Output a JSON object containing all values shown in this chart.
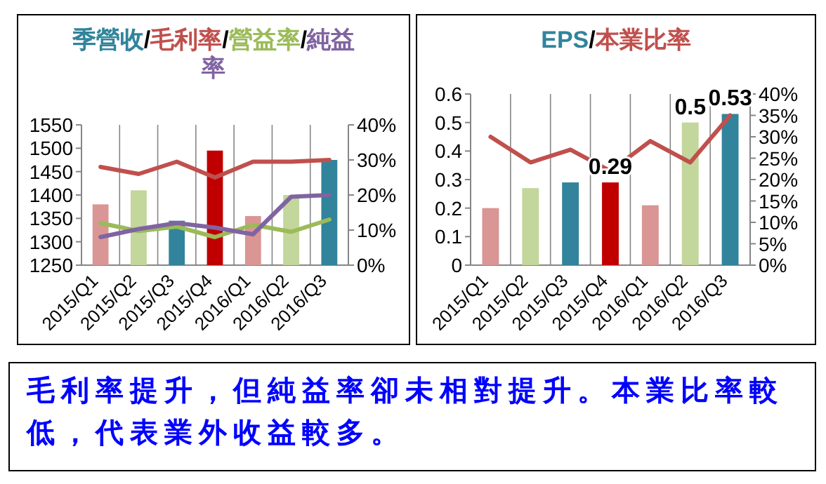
{
  "chart_data": [
    {
      "type": "bar",
      "title": "季營收/毛利率/營益率/純益率",
      "categories": [
        "2015/Q1",
        "2015/Q2",
        "2015/Q3",
        "2015/Q4",
        "2016/Q1",
        "2016/Q2",
        "2016/Q3"
      ],
      "series": [
        {
          "type": "bar",
          "color": "#31849b",
          "colors": [
            "#d99694",
            "#c3d69b",
            "#31849b",
            "#c00000",
            "#d99694",
            "#c3d69b",
            "#31849b"
          ],
          "values": [
            1380,
            1410,
            1345,
            1495,
            1355,
            1400,
            1475
          ]
        },
        {
          "type": "line",
          "axis": "y2",
          "color": "#c0504d",
          "values": [
            28,
            26,
            29.5,
            25,
            29.5,
            29.5,
            30
          ]
        },
        {
          "type": "line",
          "axis": "y2",
          "color": "#9bbb59",
          "values": [
            12,
            9.7,
            11,
            8,
            11.5,
            9.5,
            13
          ]
        },
        {
          "type": "line",
          "axis": "y2",
          "color": "#8064a2",
          "values": [
            8,
            10.3,
            12,
            10.7,
            8.8,
            19.5,
            20
          ]
        }
      ],
      "ylim": [
        1250,
        1550
      ],
      "yticks": [
        1250,
        1300,
        1350,
        1400,
        1450,
        1500,
        1550
      ],
      "y2lim": [
        0,
        40
      ],
      "y2ticks": [
        {
          "value": 0,
          "label": "0%"
        },
        {
          "value": 10,
          "label": "10%"
        },
        {
          "value": 20,
          "label": "20%"
        },
        {
          "value": 30,
          "label": "30%"
        },
        {
          "value": 40,
          "label": "40%"
        }
      ],
      "grid": "x"
    },
    {
      "type": "bar",
      "title": "EPS/本業比率",
      "categories": [
        "2015/Q1",
        "2015/Q2",
        "2015/Q3",
        "2015/Q4",
        "2016/Q1",
        "2016/Q2",
        "2016/Q3"
      ],
      "series": [
        {
          "type": "bar",
          "color": "#31849b",
          "colors": [
            "#d99694",
            "#c3d69b",
            "#31849b",
            "#c00000",
            "#d99694",
            "#c3d69b",
            "#31849b"
          ],
          "values": [
            0.2,
            0.27,
            0.29,
            0.29,
            0.21,
            0.5,
            0.53
          ],
          "value_labels": [
            null,
            null,
            null,
            "0.29",
            null,
            "0.5",
            "0.53"
          ]
        },
        {
          "type": "line",
          "axis": "y2",
          "color": "#c0504d",
          "values": [
            30,
            24,
            27,
            22,
            29,
            24,
            35
          ]
        }
      ],
      "ylim": [
        0,
        0.6
      ],
      "yticks": [
        0,
        0.1,
        0.2,
        0.3,
        0.4,
        0.5,
        0.6
      ],
      "y2lim": [
        0,
        40
      ],
      "y2ticks": [
        {
          "value": 0,
          "label": "0%"
        },
        {
          "value": 5,
          "label": "5%"
        },
        {
          "value": 10,
          "label": "10%"
        },
        {
          "value": 15,
          "label": "15%"
        },
        {
          "value": 20,
          "label": "20%"
        },
        {
          "value": 25,
          "label": "25%"
        },
        {
          "value": 30,
          "label": "30%"
        },
        {
          "value": 35,
          "label": "35%"
        },
        {
          "value": 40,
          "label": "40%"
        }
      ],
      "grid": "x"
    },
    {
      "type": "other",
      "annotations": [
        "毛利率提升，但純益率卻未相對提升。本業比率較低，代表業外收益較多。"
      ]
    }
  ]
}
